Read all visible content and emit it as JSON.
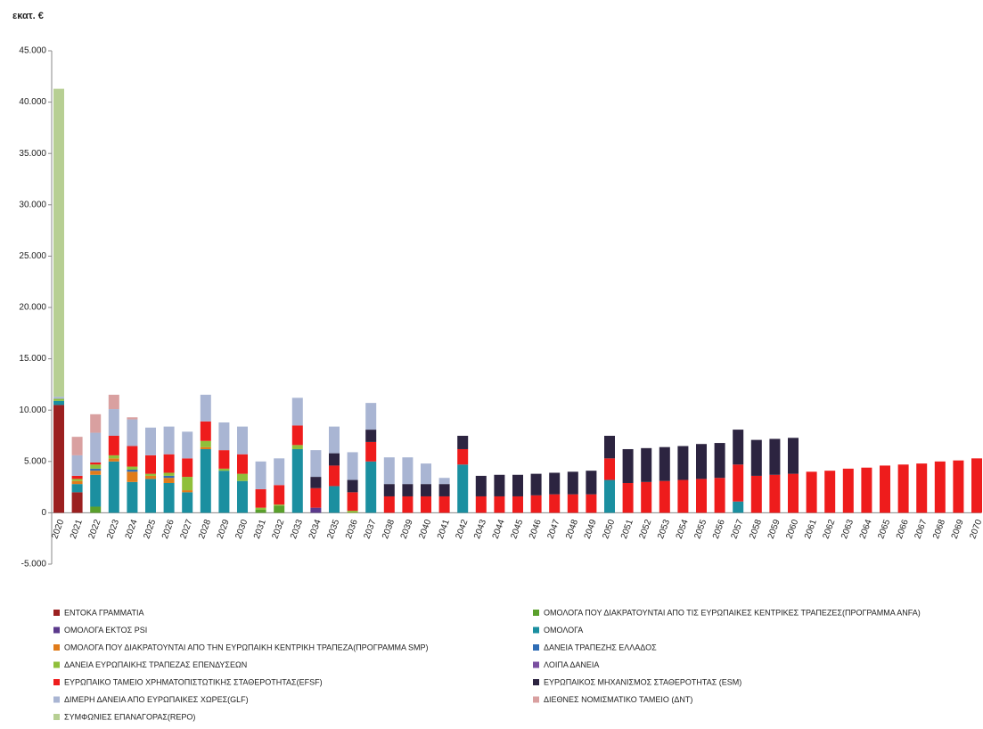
{
  "chart_data": {
    "type": "stacked_bar",
    "y_label": "εκατ. €",
    "categories": [
      "2020",
      "2021",
      "2022",
      "2023",
      "2024",
      "2025",
      "2026",
      "2027",
      "2028",
      "2029",
      "2030",
      "2031",
      "2032",
      "2033",
      "2034",
      "2035",
      "2036",
      "2037",
      "2038",
      "2039",
      "2040",
      "2041",
      "2042",
      "2043",
      "2044",
      "2045",
      "2046",
      "2047",
      "2048",
      "2049",
      "2050",
      "2051",
      "2052",
      "2053",
      "2054",
      "2055",
      "2056",
      "2057",
      "2058",
      "2059",
      "2060",
      "2061",
      "2062",
      "2063",
      "2064",
      "2065",
      "2066",
      "2067",
      "2068",
      "2069",
      "2070"
    ],
    "ylim": [
      -5000,
      45000
    ],
    "yticks": [
      {
        "value": -5000,
        "label": "-5.000"
      },
      0,
      {
        "value": 5000,
        "label": "5.000"
      },
      {
        "value": 10000,
        "label": "10.000"
      },
      {
        "value": 15000,
        "label": "15.000"
      },
      {
        "value": 20000,
        "label": "20.000"
      },
      {
        "value": 25000,
        "label": "25.000"
      },
      {
        "value": 30000,
        "label": "30.000"
      },
      {
        "value": 35000,
        "label": "35.000"
      },
      {
        "value": 40000,
        "label": "40.000"
      },
      {
        "value": 45000,
        "label": "45.000"
      }
    ],
    "series": [
      {
        "name": "ΕΝΤΟΚΑ ΓΡΑΜΜΑΤΙΑ",
        "color": "#9b2020",
        "values": [
          10500,
          2000,
          0,
          0,
          0,
          0,
          0,
          0,
          0,
          0,
          0,
          0,
          0,
          0,
          0,
          0,
          0,
          0,
          0,
          0,
          0,
          0,
          0,
          0,
          0,
          0,
          0,
          0,
          0,
          0,
          0,
          0,
          0,
          0,
          0,
          0,
          0,
          0,
          0,
          0,
          0,
          0,
          0,
          0,
          0,
          0,
          0,
          0,
          0,
          0,
          0
        ]
      },
      {
        "name": "ΟΜΟΛΟΓΑ ΠΟΥ ΔΙΑΚΡΑΤΟΥΝΤΑΙ ΑΠΟ ΤΙΣ ΕΥΡΩΠΑΙΚΕΣ ΚΕΝΤΡΙΚΕΣ ΤΡΑΠΕΖΕΣ(ΠΡΟΓΡΑΜΜΑ ΑΝFA)",
        "color": "#5aa02c",
        "values": [
          0,
          0,
          600,
          0,
          0,
          0,
          0,
          0,
          0,
          0,
          0,
          300,
          700,
          0,
          0,
          0,
          0,
          0,
          0,
          0,
          0,
          0,
          0,
          0,
          0,
          0,
          0,
          0,
          0,
          0,
          0,
          0,
          0,
          0,
          0,
          0,
          0,
          0,
          0,
          0,
          0,
          0,
          0,
          0,
          0,
          0,
          0,
          0,
          0,
          0,
          0
        ]
      },
      {
        "name": "ΟΜΟΛΟΓΑ ΕΚΤΟΣ PSI",
        "color": "#5b3a8c",
        "values": [
          0,
          0,
          0,
          0,
          0,
          0,
          0,
          0,
          0,
          0,
          0,
          0,
          0,
          0,
          500,
          0,
          0,
          0,
          0,
          0,
          0,
          0,
          0,
          0,
          0,
          0,
          0,
          0,
          0,
          0,
          0,
          0,
          0,
          0,
          0,
          0,
          0,
          0,
          0,
          0,
          0,
          0,
          0,
          0,
          0,
          0,
          0,
          0,
          0,
          0,
          0
        ]
      },
      {
        "name": "ΟΜΟΛΟΓΑ",
        "color": "#1b8fa0",
        "values": [
          400,
          800,
          3100,
          5000,
          3000,
          3300,
          2900,
          2000,
          6200,
          4100,
          3100,
          0,
          0,
          6200,
          0,
          2600,
          0,
          5000,
          0,
          0,
          0,
          0,
          4700,
          0,
          0,
          0,
          0,
          0,
          0,
          0,
          3200,
          0,
          0,
          0,
          0,
          0,
          0,
          1100,
          0,
          0,
          0,
          0,
          0,
          0,
          0,
          0,
          0,
          0,
          0,
          0,
          0
        ]
      },
      {
        "name": "ΟΜΟΛΟΓΑ ΠΟΥ ΔΙΑΚΡΑΤΟΥΝΤΑΙ ΑΠΟ ΤΗΝ ΕΥΡΩΠΑΙΚΗ ΚΕΝΤΡΙΚΗ ΤΡΑΠΕΖΑ(ΠΡΟΓΡΑΜΜΑ SMP)",
        "color": "#e07b1a",
        "values": [
          0,
          300,
          400,
          300,
          1000,
          300,
          500,
          200,
          200,
          0,
          0,
          0,
          0,
          0,
          0,
          0,
          0,
          0,
          0,
          0,
          0,
          0,
          0,
          0,
          0,
          0,
          0,
          0,
          0,
          0,
          0,
          0,
          0,
          0,
          0,
          0,
          0,
          0,
          0,
          0,
          0,
          0,
          0,
          0,
          0,
          0,
          0,
          0,
          0,
          0,
          0
        ]
      },
      {
        "name": "ΔΑΝΕΙΑ ΤΡΑΠΕΖΗΣ ΕΛΛΑΔΟΣ",
        "color": "#2f6db5",
        "values": [
          0,
          0,
          200,
          0,
          200,
          0,
          200,
          0,
          0,
          0,
          0,
          0,
          0,
          0,
          0,
          0,
          0,
          0,
          0,
          0,
          0,
          0,
          0,
          0,
          0,
          0,
          0,
          0,
          0,
          0,
          0,
          0,
          0,
          0,
          0,
          0,
          0,
          0,
          0,
          0,
          0,
          0,
          0,
          0,
          0,
          0,
          0,
          0,
          0,
          0,
          0
        ]
      },
      {
        "name": "ΔΑΝΕΙΑ ΕΥΡΩΠΑΙΚΗΣ ΤΡΑΠΕΖΑΣ ΕΠΕΝΔΥΣΕΩΝ",
        "color": "#8fbf3a",
        "values": [
          200,
          200,
          400,
          300,
          300,
          200,
          300,
          1300,
          600,
          200,
          700,
          200,
          100,
          400,
          0,
          0,
          200,
          0,
          0,
          0,
          0,
          0,
          0,
          0,
          0,
          0,
          0,
          0,
          0,
          0,
          0,
          0,
          0,
          0,
          0,
          0,
          0,
          0,
          0,
          0,
          0,
          0,
          0,
          0,
          0,
          0,
          0,
          0,
          0,
          0,
          0
        ]
      },
      {
        "name": "ΛΟΙΠΑ ΔΑΝΕΙΑ",
        "color": "#7a4fa0",
        "values": [
          0,
          0,
          0,
          0,
          0,
          0,
          0,
          0,
          0,
          0,
          0,
          0,
          0,
          0,
          0,
          0,
          0,
          0,
          0,
          0,
          0,
          0,
          0,
          0,
          0,
          0,
          0,
          0,
          0,
          0,
          0,
          0,
          0,
          0,
          0,
          0,
          0,
          0,
          0,
          0,
          0,
          0,
          0,
          0,
          0,
          0,
          0,
          0,
          0,
          0,
          0
        ]
      },
      {
        "name": "ΕΥΡΩΠΑΙΚΟ ΤΑΜΕΙΟ ΧΡΗΜΑΤΟΠΙΣΤΩΤΙΚΗΣ ΣΤΑΘΕΡΟΤΗΤΑΣ(EFSF)",
        "color": "#ee1c1c",
        "values": [
          0,
          300,
          200,
          1900,
          2000,
          1800,
          1800,
          1800,
          1900,
          1800,
          1900,
          1800,
          1900,
          1900,
          1900,
          2000,
          1800,
          1900,
          1600,
          1600,
          1600,
          1600,
          1500,
          1600,
          1600,
          1600,
          1700,
          1800,
          1800,
          1800,
          2100,
          2900,
          3000,
          3100,
          3200,
          3300,
          3400,
          3600,
          3600,
          3700,
          3800,
          4000,
          4100,
          4300,
          4400,
          4600,
          4700,
          4800,
          5000,
          5100,
          5300
        ]
      },
      {
        "name": "ΕΥΡΩΠΑΙΚΟΣ ΜΗΧΑΝΙΣΜΟΣ ΣΤΑΘΕΡΟΤΗΤΑΣ (ESM)",
        "color": "#2c2440",
        "values": [
          0,
          0,
          0,
          0,
          0,
          0,
          0,
          0,
          0,
          0,
          0,
          0,
          0,
          0,
          1100,
          1200,
          1200,
          1200,
          1200,
          1200,
          1200,
          1200,
          1300,
          2000,
          2100,
          2100,
          2100,
          2100,
          2200,
          2300,
          2200,
          3300,
          3300,
          3300,
          3300,
          3400,
          3400,
          3400,
          3500,
          3500,
          3500,
          0,
          0,
          0,
          0,
          0,
          0,
          0,
          0,
          0,
          0
        ]
      },
      {
        "name": "ΔΙΜΕΡΗ ΔΑΝΕΙΑ ΑΠΟ ΕΥΡΩΠΑΙΚΕΣ ΧΩΡΕΣ(GLF)",
        "color": "#a9b5d3",
        "values": [
          200,
          2000,
          2900,
          2600,
          2600,
          2700,
          2700,
          2600,
          2600,
          2700,
          2700,
          2700,
          2600,
          2700,
          2600,
          2600,
          2700,
          2600,
          2600,
          2600,
          2000,
          600,
          0,
          0,
          0,
          0,
          0,
          0,
          0,
          0,
          0,
          0,
          0,
          0,
          0,
          0,
          0,
          0,
          0,
          0,
          0,
          0,
          0,
          0,
          0,
          0,
          0,
          0,
          0,
          0,
          0
        ]
      },
      {
        "name": "ΔΙΕΘΝΕΣ ΝΟΜΙΣΜΑΤΙΚΟ ΤΑΜΕΙΟ (ΔΝΤ)",
        "color": "#d9a0a0",
        "values": [
          0,
          1800,
          1800,
          1400,
          200,
          0,
          0,
          0,
          0,
          0,
          0,
          0,
          0,
          0,
          0,
          0,
          0,
          0,
          0,
          0,
          0,
          0,
          0,
          0,
          0,
          0,
          0,
          0,
          0,
          0,
          0,
          0,
          0,
          0,
          0,
          0,
          0,
          0,
          0,
          0,
          0,
          0,
          0,
          0,
          0,
          0,
          0,
          0,
          0,
          0,
          0
        ]
      },
      {
        "name": "ΣΥΜΦΩΝΙΕΣ ΕΠΑΝΑΓΟΡΑΣ(REPO)",
        "color": "#b7cf93",
        "values": [
          30000,
          0,
          0,
          0,
          0,
          0,
          0,
          0,
          0,
          0,
          0,
          0,
          0,
          0,
          0,
          0,
          0,
          0,
          0,
          0,
          0,
          0,
          0,
          0,
          0,
          0,
          0,
          0,
          0,
          0,
          0,
          0,
          0,
          0,
          0,
          0,
          0,
          0,
          0,
          0,
          0,
          0,
          0,
          0,
          0,
          0,
          0,
          0,
          0,
          0,
          0
        ]
      }
    ]
  }
}
